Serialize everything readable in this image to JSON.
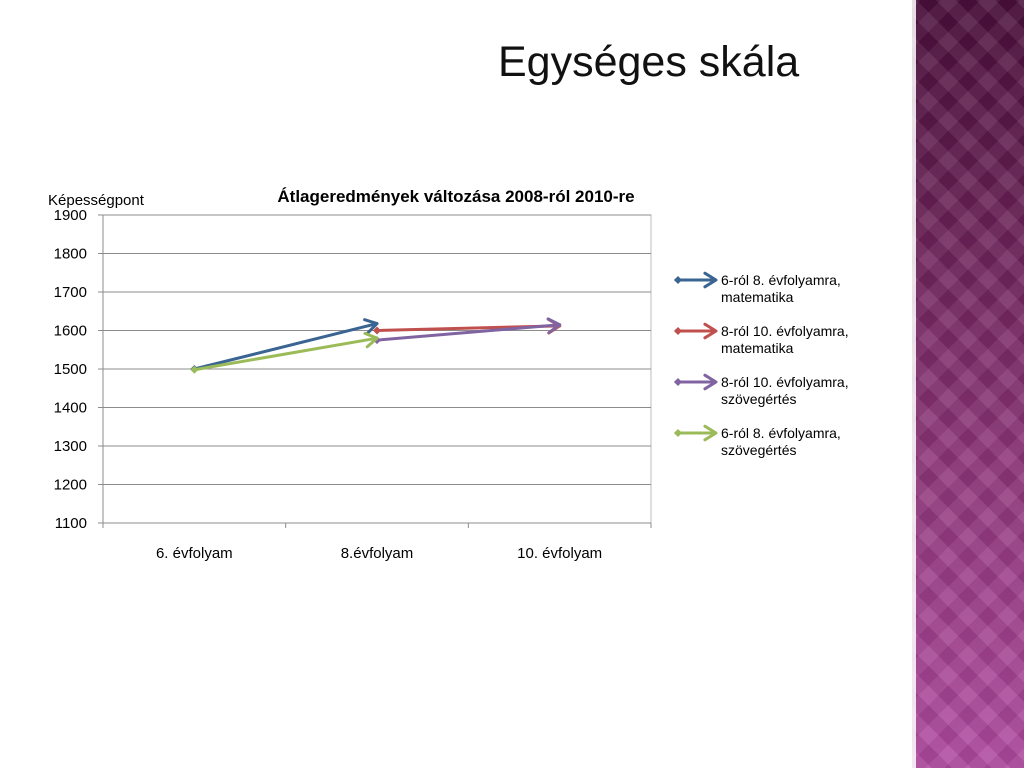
{
  "slide": {
    "title": "Egységes skála"
  },
  "chart_data": {
    "type": "line",
    "title": "Átlageredmények változása 2008-ról 2010-re",
    "ylabel": "Képességpont",
    "xlabel": "",
    "categories": [
      "6. évfolyam",
      "8.évfolyam",
      "10. évfolyam"
    ],
    "ylim": [
      1100,
      1900
    ],
    "yticks": [
      1100,
      1200,
      1300,
      1400,
      1500,
      1600,
      1700,
      1800,
      1900
    ],
    "grid": true,
    "legend_position": "right",
    "series": [
      {
        "name": "6-ról 8. évfolyamra, matematika",
        "color": "#3a6592",
        "points": [
          [
            0,
            1500
          ],
          [
            1,
            1618
          ]
        ]
      },
      {
        "name": "8-ról 10. évfolyamra, matematika",
        "color": "#c0504d",
        "points": [
          [
            1,
            1600
          ],
          [
            2,
            1612
          ]
        ]
      },
      {
        "name": "8-ról 10. évfolyamra, szövegértés",
        "color": "#8064a2",
        "points": [
          [
            1,
            1575
          ],
          [
            2,
            1615
          ]
        ]
      },
      {
        "name": "6-ról 8. évfolyamra, szövegértés",
        "color": "#9bbb59",
        "points": [
          [
            0,
            1498
          ],
          [
            1,
            1580
          ]
        ]
      }
    ]
  }
}
